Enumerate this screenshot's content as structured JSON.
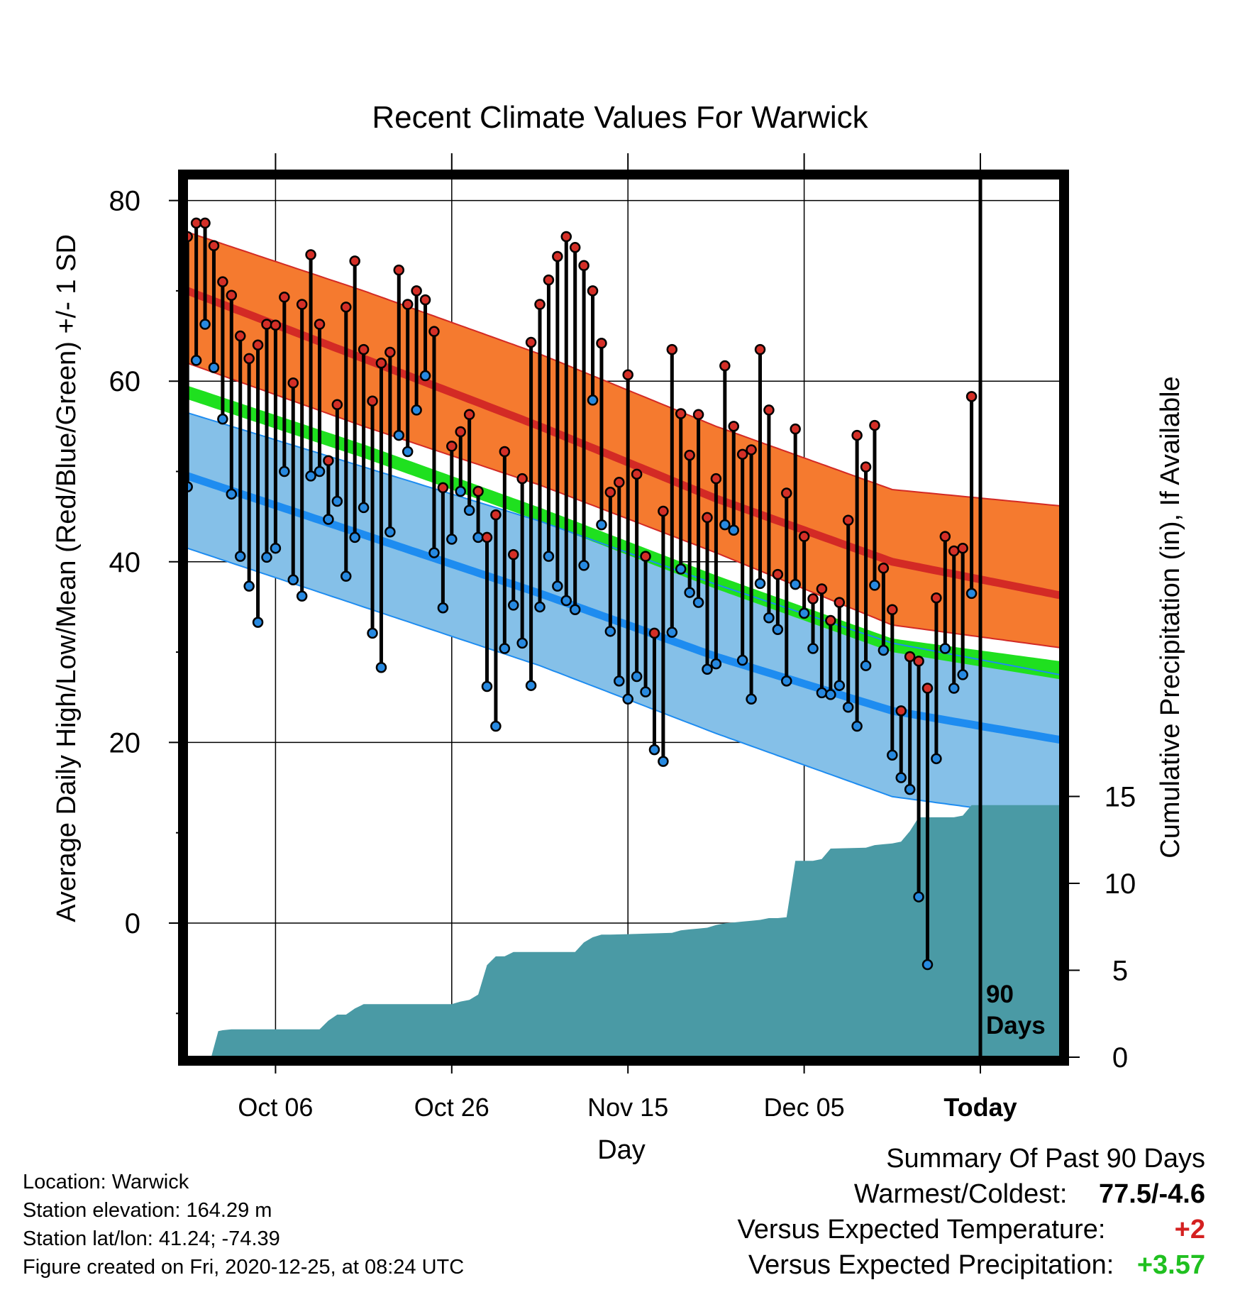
{
  "chart_data": {
    "type": "line",
    "title": "Recent Climate Values For Warwick",
    "xlabel": "Day",
    "ylabel": "Average Daily High/Low/Mean (Red/Blue/Green) +/- 1 SD",
    "y2label": "Cumulative Precipitation (in), If Available",
    "ylim": [
      -14.5,
      83
    ],
    "y2lim": [
      0,
      17.5
    ],
    "x_tick_labels": [
      "Oct 06",
      "Oct 26",
      "Nov 15",
      "Dec 05",
      "Today"
    ],
    "x_tick_days": [
      10,
      30,
      50,
      70,
      90
    ],
    "xlim": [
      -0.5,
      99.5
    ],
    "y_ticks": [
      0,
      20,
      40,
      60,
      80
    ],
    "y_minor_ticks": [
      -10,
      10,
      30,
      50,
      70
    ],
    "y2_ticks": [
      0,
      5,
      10,
      15
    ],
    "today_label": "90\nDays",
    "grid": true,
    "normals": {
      "day": [
        0,
        20,
        40,
        60,
        80,
        99
      ],
      "high_mean": [
        70,
        62.5,
        55,
        47,
        40,
        36.3
      ],
      "high_upper": [
        76.5,
        70,
        63,
        55,
        48,
        46.2
      ],
      "high_lower": [
        62,
        55,
        48.5,
        41,
        33,
        30.5
      ],
      "low_mean": [
        49.5,
        43,
        36.5,
        29.5,
        23.5,
        20.3
      ],
      "low_upper": [
        56.5,
        50.5,
        44.5,
        37.5,
        31,
        27.5
      ],
      "low_lower": [
        41.5,
        35,
        28.5,
        21,
        14,
        11.5
      ],
      "avg_mean_upper": [
        59.5,
        53,
        46,
        38.5,
        31.5,
        29
      ],
      "avg_mean_lower": [
        58,
        51.5,
        44.5,
        37,
        30,
        27
      ]
    },
    "series": [
      {
        "name": "High",
        "values": [
          76,
          77.5,
          77.5,
          75,
          71,
          69.5,
          65,
          62.5,
          64,
          66.3,
          66.2,
          69.3,
          59.8,
          68.5,
          74,
          66.3,
          51.2,
          57.4,
          68.2,
          73.3,
          63.5,
          57.8,
          62,
          63.2,
          72.3,
          68.5,
          70,
          69,
          65.5,
          48.2,
          52.8,
          54.4,
          56.3,
          47.8,
          42.7,
          45.2,
          52.2,
          40.8,
          49.2,
          64.3,
          68.5,
          71.2,
          73.8,
          76,
          74.8,
          72.8,
          70,
          64.2,
          47.7,
          48.8,
          60.7,
          49.7,
          40.6,
          32.1,
          45.6,
          63.5,
          56.4,
          51.8,
          56.3,
          44.9,
          49.2,
          61.7,
          55,
          51.9,
          52.4,
          63.5,
          56.8,
          38.6,
          47.6,
          54.7,
          42.8,
          35.9,
          37,
          33.5,
          35.5,
          44.6,
          54,
          50.5,
          55.1,
          39.3,
          34.7,
          23.5,
          29.5,
          29,
          26,
          36,
          42.8,
          41.2,
          41.5,
          58.3
        ]
      },
      {
        "name": "Low",
        "values": [
          48.3,
          62.3,
          66.3,
          61.5,
          55.8,
          47.5,
          40.6,
          37.3,
          33.3,
          40.5,
          41.5,
          50,
          38,
          36.2,
          49.5,
          50,
          44.7,
          46.7,
          38.4,
          42.7,
          46,
          32.1,
          28.3,
          43.3,
          54,
          52.2,
          56.8,
          60.6,
          41,
          34.9,
          42.5,
          47.8,
          45.7,
          42.7,
          26.2,
          21.8,
          30.4,
          35.2,
          31,
          26.3,
          35,
          40.6,
          37.3,
          35.7,
          34.7,
          39.6,
          57.9,
          44.1,
          32.3,
          26.8,
          24.8,
          27.3,
          25.6,
          19.2,
          17.9,
          32.2,
          39.2,
          36.6,
          35.5,
          28.1,
          28.7,
          44.1,
          43.5,
          29.1,
          24.8,
          37.6,
          33.8,
          32.5,
          26.8,
          37.5,
          34.3,
          30.4,
          25.5,
          25.3,
          26.3,
          23.9,
          21.8,
          28.5,
          37.4,
          30.2,
          18.6,
          16.1,
          14.8,
          2.9,
          -4.6,
          18.2,
          30.4,
          26,
          27.5,
          36.5
        ]
      },
      {
        "name": "Cumulative Precipitation",
        "x": [
          0,
          2.7,
          3.5,
          4,
          5,
          15,
          16,
          17,
          18,
          19,
          20,
          21,
          22,
          30,
          31,
          32,
          33,
          34,
          35,
          36,
          37,
          44,
          45,
          46,
          47,
          48,
          55,
          56,
          57,
          58,
          59,
          60,
          61,
          62,
          63,
          64,
          65,
          66,
          67,
          68,
          69,
          70,
          71,
          72,
          73,
          77,
          78,
          79,
          80,
          81,
          82,
          83,
          87,
          88,
          89,
          90,
          99
        ],
        "values": [
          0,
          0,
          1.5,
          1.55,
          1.6,
          1.6,
          2.1,
          2.45,
          2.45,
          2.8,
          3.05,
          3.05,
          3.05,
          3.05,
          3.2,
          3.3,
          3.6,
          5.3,
          5.8,
          5.8,
          6.05,
          6.05,
          6.6,
          6.9,
          7.05,
          7.05,
          7.15,
          7.3,
          7.35,
          7.4,
          7.45,
          7.6,
          7.7,
          7.75,
          7.8,
          7.85,
          7.9,
          8.0,
          8.0,
          8.05,
          11.3,
          11.3,
          11.3,
          11.4,
          12.0,
          12.05,
          12.2,
          12.25,
          12.3,
          12.4,
          13.0,
          13.8,
          13.8,
          13.9,
          14.5,
          14.5,
          14.5
        ]
      }
    ],
    "colors": {
      "high_band": "#f57a2f",
      "high_mean": "#d32a25",
      "high_edge": "#d32a25",
      "low_band": "#85c0e8",
      "low_mean": "#1e8cf0",
      "low_edge": "#1e8cf0",
      "avg_band": "#1fe01f",
      "overlap": "#9a1515",
      "precip": "#4a9aa5",
      "high_dot": "#d42f27",
      "low_dot": "#2789e0"
    }
  },
  "footer": {
    "location": "Location: Warwick",
    "elevation": "Station elevation: 164.29 m",
    "latlon": "Station lat/lon: 41.24; -74.39",
    "created": "Figure created on Fri, 2020-12-25, at 08:24 UTC"
  },
  "summary": {
    "title": "Summary Of Past 90 Days",
    "warmest_label": "Warmest/Coldest:",
    "warmest_value": "77.5/-4.6",
    "temp_label": "Versus Expected Temperature:",
    "temp_value": "+2",
    "temp_color": "#d42020",
    "precip_label": "Versus Expected Precipitation:",
    "precip_value": "+3.57",
    "precip_color": "#20c020"
  }
}
